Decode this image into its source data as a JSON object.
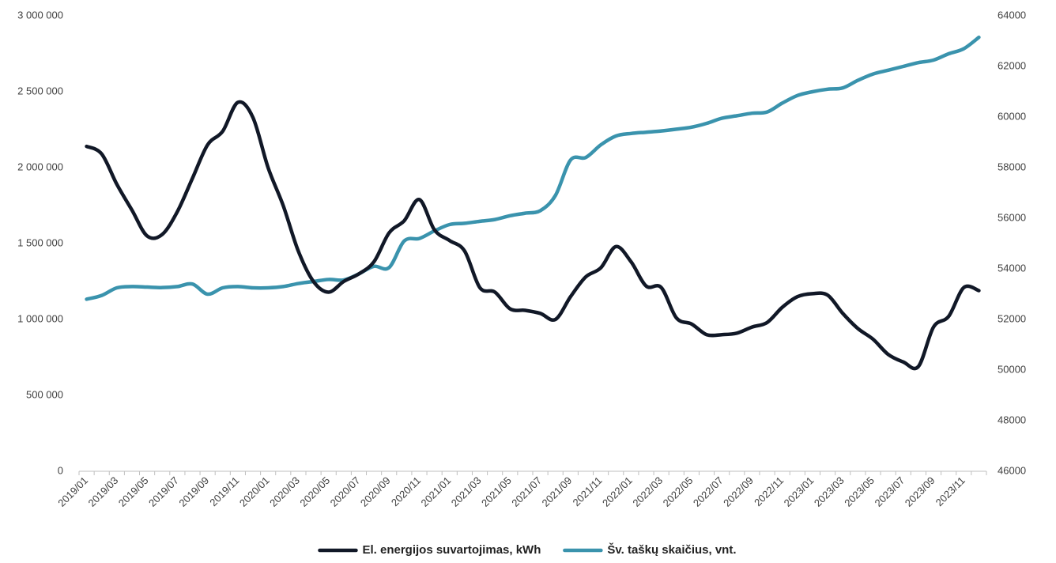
{
  "chart_data": {
    "type": "line",
    "title": "",
    "xlabel": "",
    "ylabel": "",
    "y2label": "",
    "grid": false,
    "legend_position": "bottom",
    "ylim": [
      0,
      3000000
    ],
    "y2lim": [
      46000,
      64000
    ],
    "y_ticks": [
      "0",
      "500 000",
      "1 000 000",
      "1 500 000",
      "2 000 000",
      "2 500 000",
      "3 000 000"
    ],
    "y2_ticks": [
      "46000",
      "48000",
      "50000",
      "52000",
      "54000",
      "56000",
      "58000",
      "60000",
      "62000",
      "64000"
    ],
    "x_tick_labels": [
      "2019/01",
      "2019/03",
      "2019/05",
      "2019/07",
      "2019/09",
      "2019/11",
      "2020/01",
      "2020/03",
      "2020/05",
      "2020/07",
      "2020/09",
      "2020/11",
      "2021/01",
      "2021/03",
      "2021/05",
      "2021/07",
      "2021/09",
      "2021/11",
      "2022/01",
      "2022/03",
      "2022/05",
      "2022/07",
      "2022/09",
      "2022/11",
      "2023/01",
      "2023/03",
      "2023/05",
      "2023/07",
      "2023/09",
      "2023/11"
    ],
    "x": [
      "2019/01",
      "2019/02",
      "2019/03",
      "2019/04",
      "2019/05",
      "2019/06",
      "2019/07",
      "2019/08",
      "2019/09",
      "2019/10",
      "2019/11",
      "2019/12",
      "2020/01",
      "2020/02",
      "2020/03",
      "2020/04",
      "2020/05",
      "2020/06",
      "2020/07",
      "2020/08",
      "2020/09",
      "2020/10",
      "2020/11",
      "2020/12",
      "2021/01",
      "2021/02",
      "2021/03",
      "2021/04",
      "2021/05",
      "2021/06",
      "2021/07",
      "2021/08",
      "2021/09",
      "2021/10",
      "2021/11",
      "2021/12",
      "2022/01",
      "2022/02",
      "2022/03",
      "2022/04",
      "2022/05",
      "2022/06",
      "2022/07",
      "2022/08",
      "2022/09",
      "2022/10",
      "2022/11",
      "2022/12",
      "2023/01",
      "2023/02",
      "2023/03",
      "2023/04",
      "2023/05",
      "2023/06",
      "2023/07",
      "2023/08",
      "2023/09",
      "2023/10",
      "2023/11",
      "2023/12"
    ],
    "series": [
      {
        "name": "El. energijos suvartojimas, kWh",
        "axis": "left",
        "color": "#111827",
        "values": [
          2140000,
          2090000,
          1890000,
          1720000,
          1550000,
          1560000,
          1710000,
          1930000,
          2150000,
          2240000,
          2430000,
          2330000,
          2000000,
          1750000,
          1450000,
          1250000,
          1180000,
          1250000,
          1300000,
          1380000,
          1570000,
          1650000,
          1790000,
          1590000,
          1520000,
          1450000,
          1210000,
          1180000,
          1070000,
          1060000,
          1040000,
          1000000,
          1150000,
          1280000,
          1340000,
          1480000,
          1380000,
          1220000,
          1210000,
          1010000,
          970000,
          900000,
          900000,
          910000,
          950000,
          980000,
          1080000,
          1150000,
          1170000,
          1160000,
          1040000,
          940000,
          870000,
          770000,
          720000,
          690000,
          950000,
          1020000,
          1210000,
          1190000
        ]
      },
      {
        "name": "Šv. taškų skaičius, vnt.",
        "axis": "right",
        "color": "#3A93AD",
        "values": [
          52800,
          52950,
          53250,
          53300,
          53280,
          53260,
          53300,
          53400,
          53000,
          53250,
          53300,
          53250,
          53250,
          53300,
          53420,
          53500,
          53580,
          53560,
          53800,
          54100,
          54050,
          55100,
          55200,
          55500,
          55750,
          55800,
          55880,
          55950,
          56100,
          56200,
          56300,
          56900,
          58300,
          58400,
          58900,
          59250,
          59350,
          59400,
          59450,
          59520,
          59600,
          59750,
          59950,
          60050,
          60150,
          60200,
          60550,
          60850,
          61000,
          61100,
          61150,
          61450,
          61700,
          61850,
          62000,
          62150,
          62250,
          62500,
          62700,
          63150
        ]
      }
    ]
  }
}
